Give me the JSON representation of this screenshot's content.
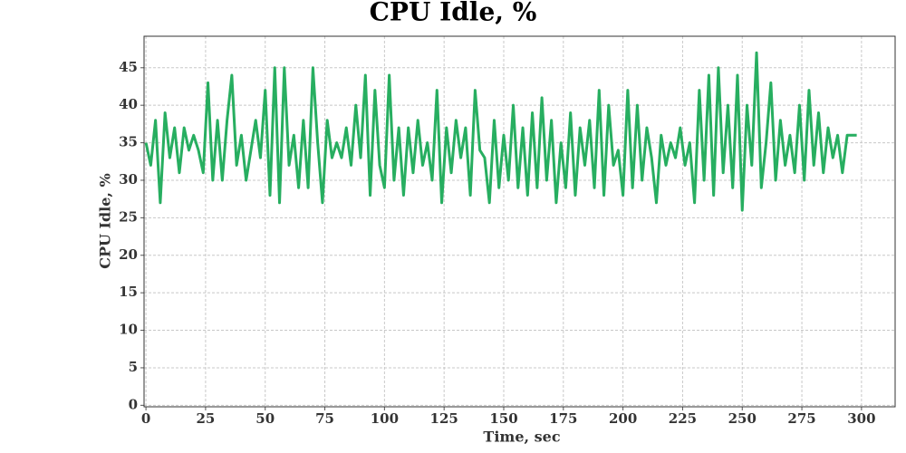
{
  "chart_data": {
    "type": "line",
    "title": "CPU Idle, %",
    "xlabel": "Time, sec",
    "ylabel": "CPU Idle, %",
    "x": [
      0,
      2,
      4,
      6,
      8,
      10,
      12,
      14,
      16,
      18,
      20,
      22,
      24,
      26,
      28,
      30,
      32,
      34,
      36,
      38,
      40,
      42,
      44,
      46,
      48,
      50,
      52,
      54,
      56,
      58,
      60,
      62,
      64,
      66,
      68,
      70,
      72,
      74,
      76,
      78,
      80,
      82,
      84,
      86,
      88,
      90,
      92,
      94,
      96,
      98,
      100,
      102,
      104,
      106,
      108,
      110,
      112,
      114,
      116,
      118,
      120,
      122,
      124,
      126,
      128,
      130,
      132,
      134,
      136,
      138,
      140,
      142,
      144,
      146,
      148,
      150,
      152,
      154,
      156,
      158,
      160,
      162,
      164,
      166,
      168,
      170,
      172,
      174,
      176,
      178,
      180,
      182,
      184,
      186,
      188,
      190,
      192,
      194,
      196,
      198,
      200,
      202,
      204,
      206,
      208,
      210,
      212,
      214,
      216,
      218,
      220,
      222,
      224,
      226,
      228,
      230,
      232,
      234,
      236,
      238,
      240,
      242,
      244,
      246,
      248,
      250,
      252,
      254,
      256,
      258,
      260,
      262,
      264,
      266,
      268,
      270,
      272,
      274,
      276,
      278,
      280,
      282,
      284,
      286,
      288,
      290,
      292,
      294,
      296,
      298
    ],
    "series": [
      {
        "name": "CPU Idle",
        "color": "#27ae60",
        "values": [
          35,
          32,
          38,
          27,
          39,
          33,
          37,
          31,
          37,
          34,
          36,
          34,
          31,
          43,
          30,
          38,
          30,
          38,
          44,
          32,
          36,
          30,
          34,
          38,
          33,
          42,
          28,
          45,
          27,
          45,
          32,
          36,
          29,
          38,
          29,
          45,
          35,
          27,
          38,
          33,
          35,
          33,
          37,
          32,
          40,
          33,
          44,
          28,
          42,
          32,
          29,
          44,
          30,
          37,
          28,
          37,
          31,
          38,
          32,
          35,
          30,
          42,
          27,
          37,
          31,
          38,
          33,
          37,
          28,
          42,
          34,
          33,
          27,
          38,
          29,
          36,
          30,
          40,
          29,
          37,
          28,
          39,
          29,
          41,
          30,
          38,
          27,
          35,
          29,
          39,
          28,
          37,
          32,
          38,
          29,
          42,
          28,
          40,
          32,
          34,
          28,
          42,
          29,
          40,
          30,
          37,
          33,
          27,
          36,
          32,
          35,
          33,
          37,
          32,
          35,
          27,
          42,
          30,
          44,
          28,
          45,
          31,
          40,
          29,
          44,
          26,
          40,
          32,
          47,
          29,
          35,
          43,
          30,
          38,
          32,
          36,
          31,
          40,
          30,
          42,
          32,
          39,
          31,
          37,
          33,
          36,
          31,
          36,
          36,
          36
        ]
      }
    ],
    "xlim": [
      -0.8,
      314.1
    ],
    "xticks": [
      0,
      25,
      50,
      75,
      100,
      125,
      150,
      175,
      200,
      225,
      250,
      275,
      300
    ],
    "ylim": [
      -0.2,
      49.2
    ],
    "yticks": [
      0,
      5,
      10,
      15,
      20,
      25,
      30,
      35,
      40,
      45
    ],
    "grid": true
  }
}
